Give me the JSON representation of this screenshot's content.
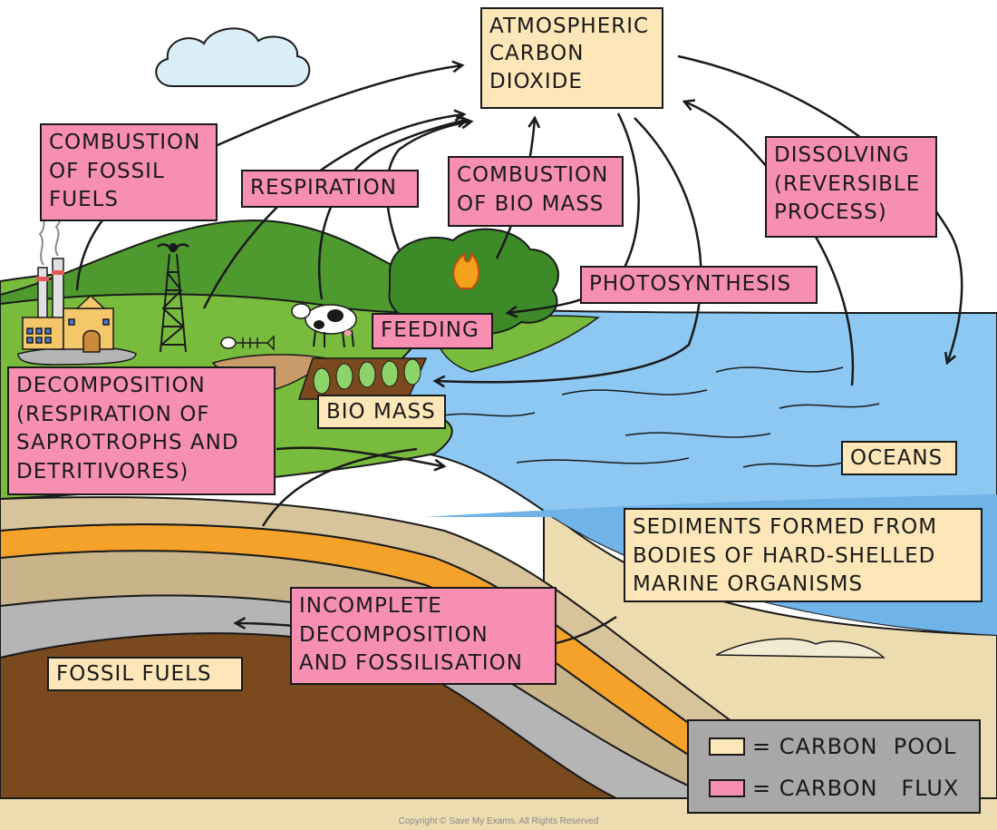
{
  "labels": {
    "atmospheric_co2": "ATMOSPHERIC\nCARBON\nDIOXIDE",
    "combustion_fossil_fuels": "COMBUSTION\nOF  FOSSIL\nFUELS",
    "respiration": "RESPIRATION",
    "combustion_biomass": "COMBUSTION\nOF BIO MASS",
    "dissolving": "DISSOLVING\n(REVERSIBLE\nPROCESS)",
    "photosynthesis": "PHOTOSYNTHESIS",
    "feeding": "FEEDING",
    "biomass": "BIO MASS",
    "decomposition": "DECOMPOSITION\n(RESPIRATION  OF\nSAPROTROPHS  AND\nDETRITIVORES)",
    "oceans": "OCEANS",
    "sediments": "SEDIMENTS  FORMED  FROM\nBODIES  OF  HARD-SHELLED\nMARINE  ORGANISMS",
    "incomplete_decomposition": "INCOMPLETE\nDECOMPOSITION\nAND  FOSSILISATION",
    "fossil_fuels": "FOSSIL  FUELS"
  },
  "legend": {
    "pool_label": "= CARBON  POOL",
    "flux_label": "= CARBON   FLUX"
  },
  "copyright": "Copyright © Save My Exams. All Rights Reserved",
  "colors": {
    "carbon_pool": "#fde7b8",
    "carbon_flux": "#f78fb3",
    "ocean": "#8cc8f2",
    "land": "#79bb3c",
    "hills": "#4e9a2e",
    "soil": "#7a4a1e",
    "sand": "#ecdcb0",
    "orange_layer": "#f4a22a",
    "grey_layer": "#b5b5b5",
    "legend_bg": "#a8a8a8"
  }
}
